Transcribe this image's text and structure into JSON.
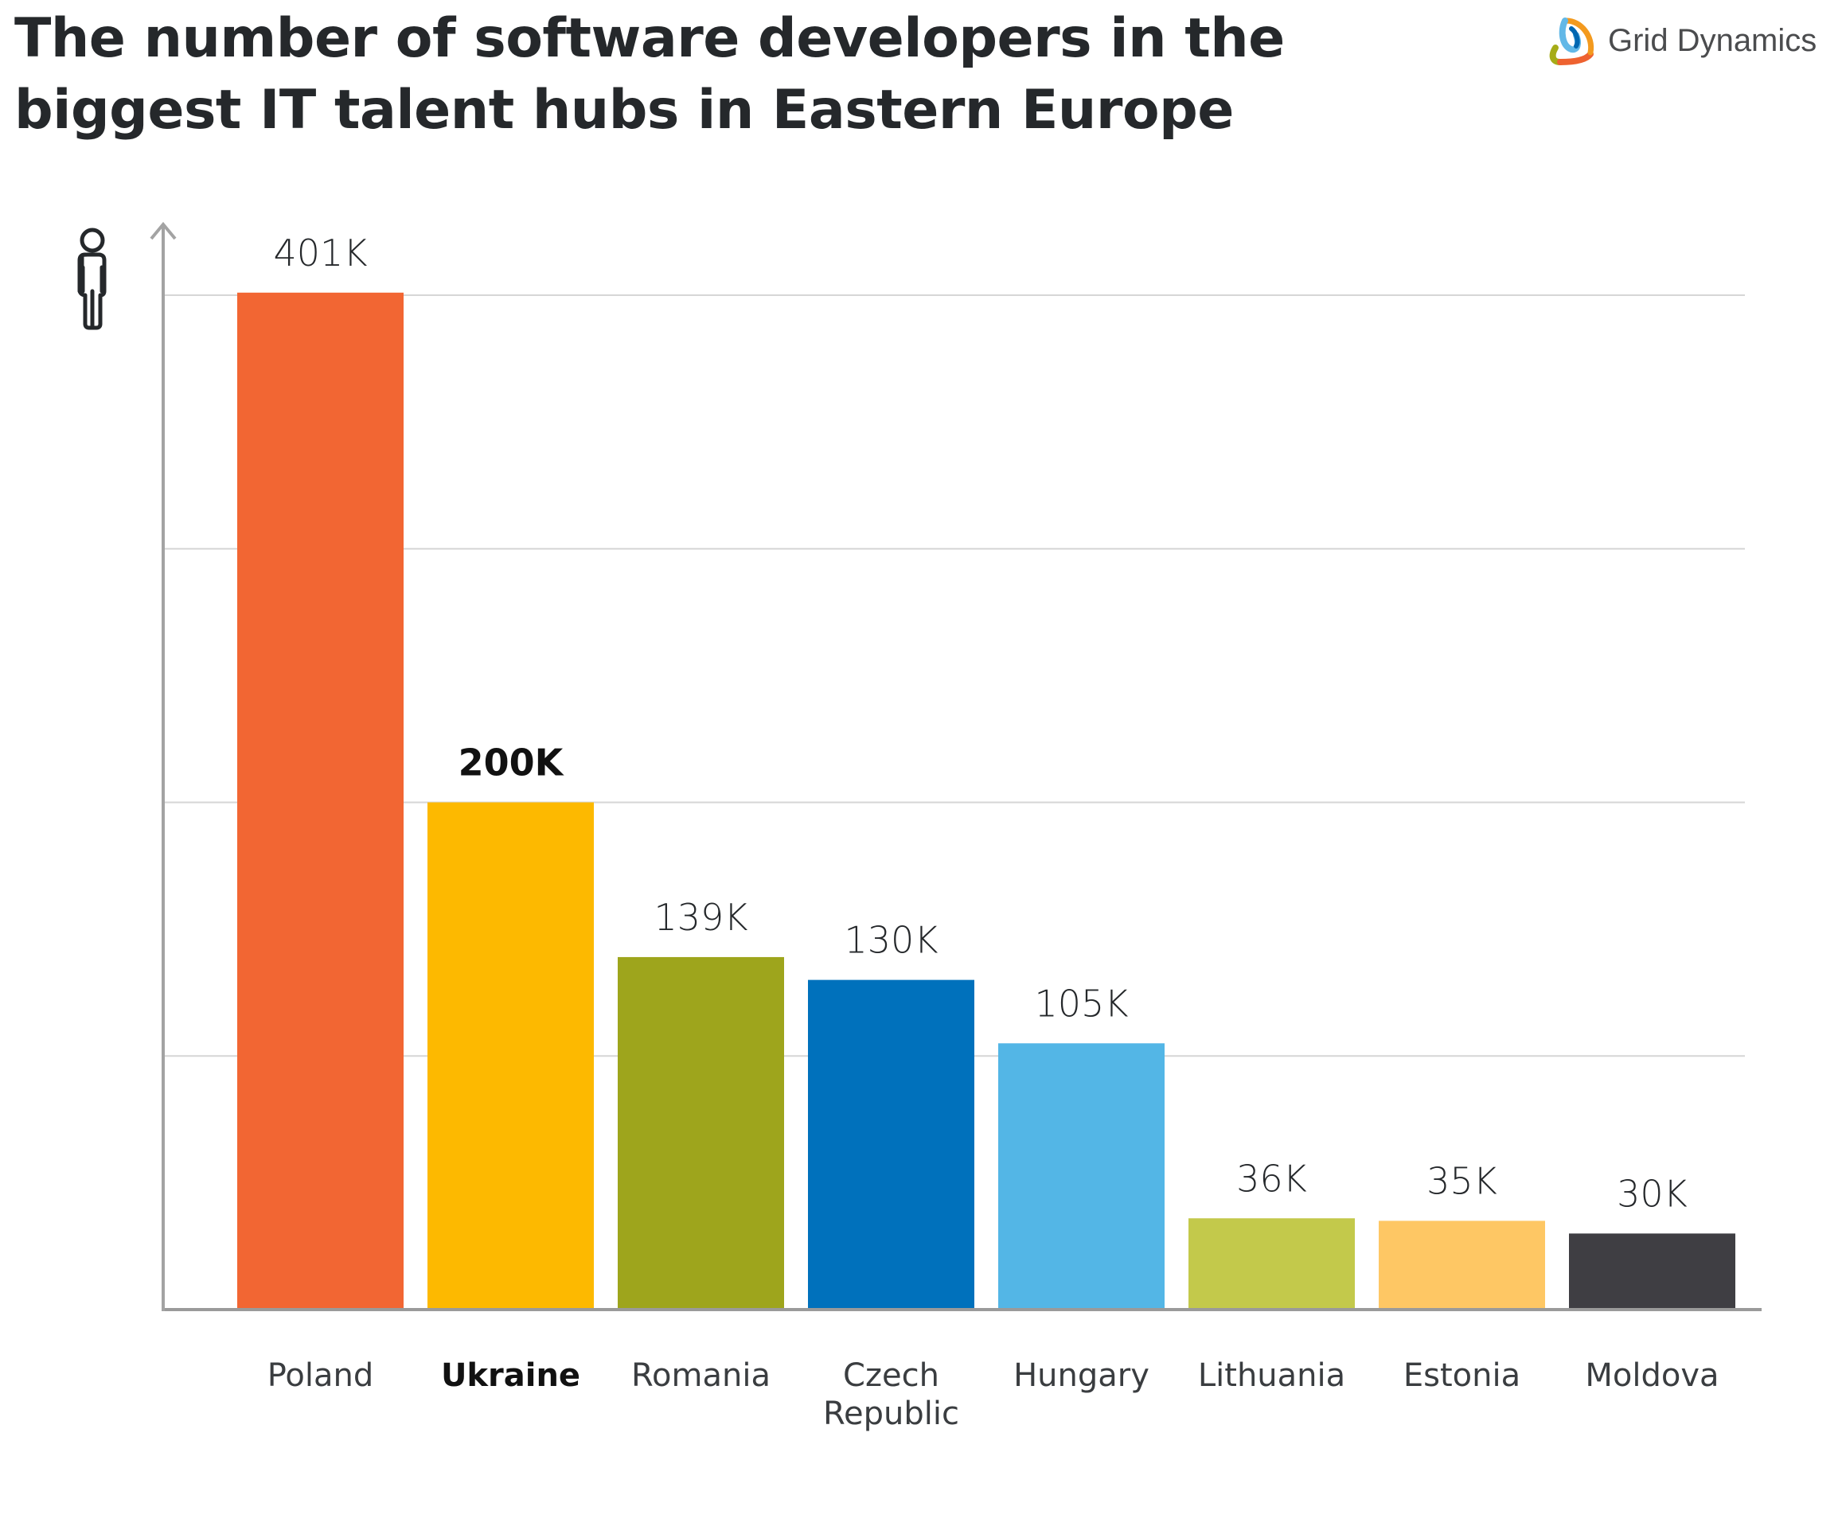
{
  "title": {
    "line1": "The number of software developers in the",
    "line2": "biggest IT talent hubs in Eastern Europe"
  },
  "logo": {
    "text": "Grid Dynamics"
  },
  "icons": {
    "y_axis": "person-icon"
  },
  "chart_data": {
    "type": "bar",
    "title": "The number of software developers in the biggest IT talent hubs in Eastern Europe",
    "xlabel": "",
    "ylabel": "",
    "ylim": [
      0,
      400000
    ],
    "grid": true,
    "gridlines": [
      100000,
      200000,
      300000,
      400000
    ],
    "highlighted_category": "Ukraine",
    "categories": [
      "Poland",
      "Ukraine",
      "Romania",
      "Czech Republic",
      "Hungary",
      "Lithuania",
      "Estonia",
      "Moldova"
    ],
    "category_lines": [
      [
        "Poland"
      ],
      [
        "Ukraine"
      ],
      [
        "Romania"
      ],
      [
        "Czech",
        "Republic"
      ],
      [
        "Hungary"
      ],
      [
        "Lithuania"
      ],
      [
        "Estonia"
      ],
      [
        "Moldova"
      ]
    ],
    "values": [
      401000,
      200000,
      139000,
      130000,
      105000,
      36000,
      35000,
      30000
    ],
    "data_labels": [
      "401K",
      "200K",
      "139K",
      "130K",
      "105K",
      "36K",
      "35K",
      "30K"
    ],
    "colors": [
      "#f26633",
      "#fdb900",
      "#9ea51c",
      "#0071bc",
      "#53b6e6",
      "#c3c94b",
      "#fec764",
      "#3f3e43"
    ]
  }
}
